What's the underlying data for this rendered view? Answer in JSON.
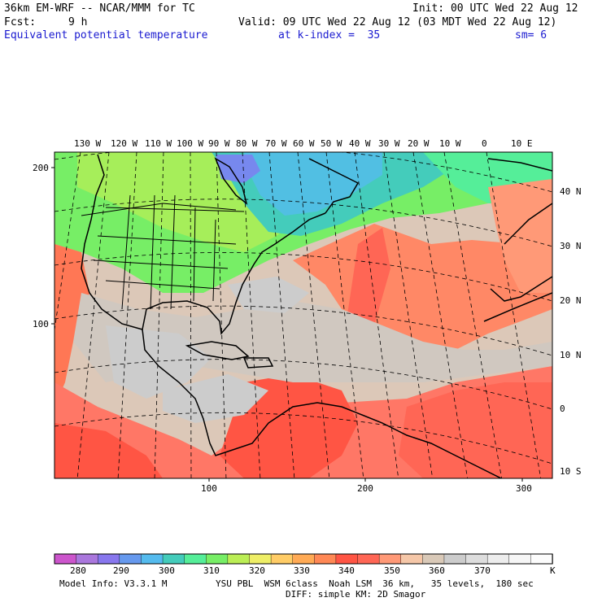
{
  "header": {
    "model_title": "36km EM-WRF -- NCAR/MMM for TC",
    "init_time": "Init: 00 UTC Wed 22 Aug 12",
    "fcst_label": "Fcst:",
    "fcst_value": "9 h",
    "valid_time": "Valid: 09 UTC Wed 22 Aug 12 (03 MDT Wed 22 Aug 12)",
    "field_name": "Equivalent potential temperature",
    "level": "at k-index =  35",
    "smoothing": "sm= 6"
  },
  "map": {
    "lon_labels": [
      "130 W",
      "120 W",
      "110 W",
      "100 W",
      "90 W",
      "80 W",
      "70 W",
      "60 W",
      "50 W",
      "40 W",
      "30 W",
      "20 W",
      "10 W",
      "0",
      "10 E"
    ],
    "lat_labels": [
      "40 N",
      "30 N",
      "20 N",
      "10 N",
      "0",
      "10 S"
    ],
    "grid_x_labels": [
      "100",
      "200",
      "300"
    ],
    "grid_y_labels": [
      "200",
      "100"
    ]
  },
  "colorbar": {
    "labels": [
      "280",
      "290",
      "300",
      "310",
      "320",
      "330",
      "340",
      "350",
      "360",
      "370"
    ],
    "unit": "K",
    "colors": [
      "#cc55cc",
      "#aa77dd",
      "#8877ee",
      "#6699ee",
      "#55bbee",
      "#44ccbb",
      "#55ee99",
      "#77ee66",
      "#bbee55",
      "#eeee66",
      "#ffcc66",
      "#ffaa55",
      "#ff8855",
      "#ff5544",
      "#ff6655",
      "#ff9977",
      "#f5c7a8",
      "#d9c9b8",
      "#cccccc",
      "#dddddd",
      "#ededed",
      "#f6f6f6",
      "#fcfcfc"
    ]
  },
  "footer": {
    "model_info": "Model Info: V3.3.1 M",
    "physics_line1": "YSU PBL  WSM 6class  Noah LSM  36 km,   35 levels,  180 sec",
    "physics_line2": "DIFF: simple KM: 2D Smagor"
  }
}
